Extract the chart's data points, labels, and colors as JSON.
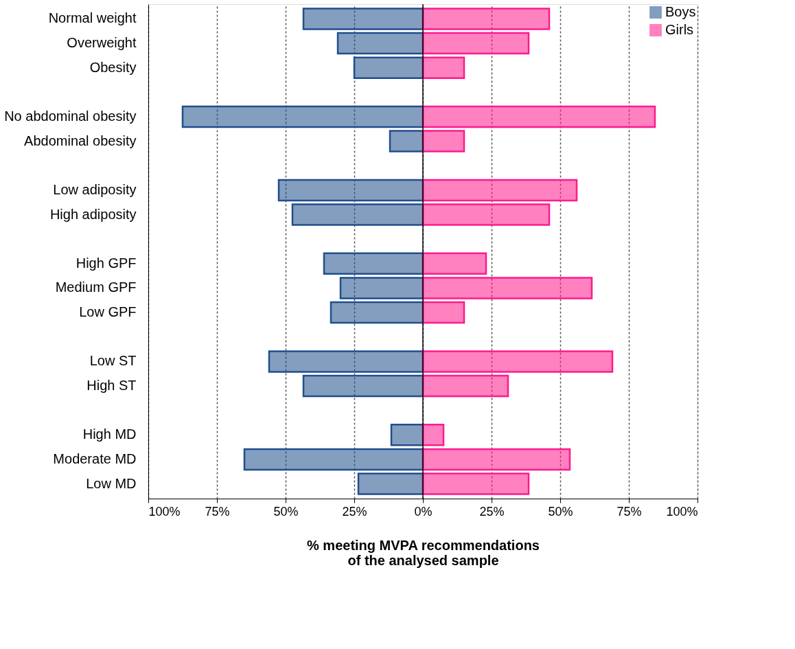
{
  "chart_data": {
    "type": "bar",
    "orientation": "horizontal",
    "categories": [
      "Normal weight",
      "Overweight",
      "Obesity",
      null,
      "No abdominal obesity",
      "Abdominal obesity",
      null,
      "Low adiposity",
      "High adiposity",
      null,
      "High GPF",
      "Medium GPF",
      "Low GPF",
      null,
      "Low ST",
      "High ST",
      null,
      "High MD",
      "Moderate MD",
      "Low MD"
    ],
    "series": [
      {
        "name": "Boys",
        "color": "#1f4e8c",
        "values": [
          -43.5,
          -31,
          -25,
          null,
          -87.5,
          -12,
          null,
          -52.5,
          -47.5,
          null,
          -36,
          -30,
          -33.5,
          null,
          -56,
          -43.5,
          null,
          -11.5,
          -65,
          -23.5
        ]
      },
      {
        "name": "Girls",
        "color": "#ff1a8c",
        "values": [
          46,
          38.5,
          15,
          null,
          84.5,
          15,
          null,
          56,
          46,
          null,
          23,
          61.5,
          15,
          null,
          69,
          31,
          null,
          7.5,
          53.5,
          38.5
        ]
      }
    ],
    "xlim": [
      -100,
      100
    ],
    "xticks": [
      {
        "value": -100,
        "label": "100%"
      },
      {
        "value": -75,
        "label": "75%"
      },
      {
        "value": -50,
        "label": "50%"
      },
      {
        "value": -25,
        "label": "25%"
      },
      {
        "value": 0,
        "label": "0%"
      },
      {
        "value": 25,
        "label": "25%"
      },
      {
        "value": 50,
        "label": "50%"
      },
      {
        "value": 75,
        "label": "75%"
      },
      {
        "value": 100,
        "label": "100%"
      }
    ],
    "xlabel": "% meeting MVPA recommendations\nof the analysed sample",
    "grid": "x",
    "legend": "top right",
    "ref_lines": [
      {
        "axis": "x",
        "value": 0,
        "color": "#000000",
        "line_style": "solid"
      }
    ]
  }
}
